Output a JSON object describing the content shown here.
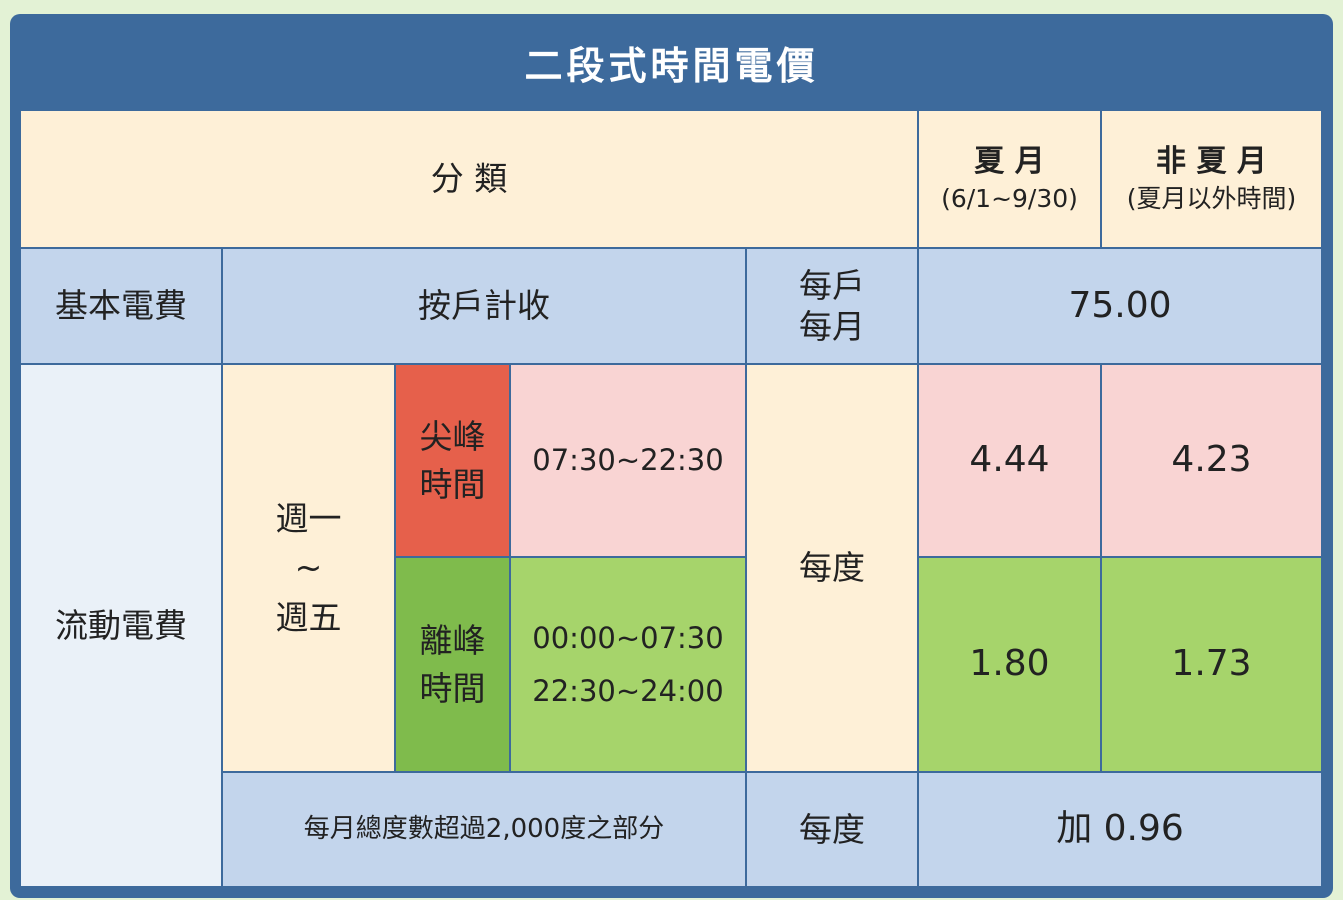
{
  "title": "二段式時間電價",
  "header": {
    "category": "分 類",
    "summer": {
      "label": "夏 月",
      "period": "(6/1~9/30)"
    },
    "non_summer": {
      "label": "非 夏 月",
      "period": "(夏月以外時間)"
    }
  },
  "basic_fee": {
    "label": "基本電費",
    "method": "按戶計收",
    "unit_line1": "每戶",
    "unit_line2": "每月",
    "value": "75.00"
  },
  "energy_fee": {
    "label": "流動電費",
    "weekdays": {
      "line1": "週一",
      "line2": "~",
      "line3": "週五"
    },
    "unit": "每度",
    "peak": {
      "label_line1": "尖峰",
      "label_line2": "時間",
      "time": "07:30~22:30",
      "summer": "4.44",
      "non_summer": "4.23"
    },
    "off_peak": {
      "label_line1": "離峰",
      "label_line2": "時間",
      "time_line1": "00:00~07:30",
      "time_line2": "22:30~24:00",
      "summer": "1.80",
      "non_summer": "1.73"
    },
    "excess": {
      "label": "每月總度數超過2,000度之部分",
      "unit": "每度",
      "value": "加 0.96"
    }
  },
  "colors": {
    "frame": "#3d6a9c",
    "peak": "#e6604b",
    "peak_light": "#f9d4d3",
    "off_peak": "#7fbb4c",
    "off_peak_light": "#a6d46b",
    "cream": "#fef0d7",
    "light_blue": "#c3d5ec"
  }
}
